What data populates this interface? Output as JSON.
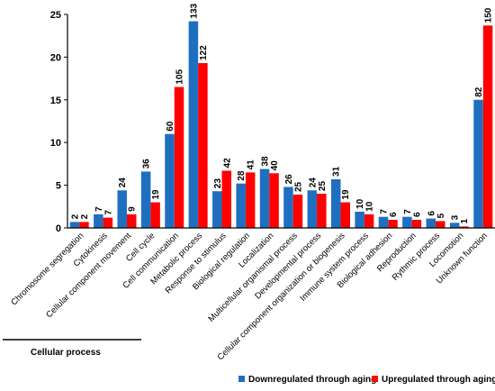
{
  "chart_data": {
    "type": "bar",
    "categories": [
      "Chromosome segregation",
      "Cytokinesis",
      "Cellular component movement",
      "Cell cycle",
      "Cell communication",
      "Metabolic process",
      "Response to stimulus",
      "Biological regulation",
      "Localization",
      "Multicellular organismal process",
      "Developmental process",
      "Cellular component organization or biogenesis",
      "Immune system process",
      "Biological adhesion",
      "Reproduction",
      "Rythmic process",
      "Locomotion",
      "Unknown function"
    ],
    "series": [
      {
        "name": "Downregulated through aging",
        "color": "#1f6fc1",
        "values": [
          0.7,
          1.6,
          4.4,
          6.6,
          11.0,
          24.2,
          4.3,
          5.2,
          6.9,
          4.8,
          4.4,
          5.7,
          1.9,
          1.3,
          1.3,
          1.1,
          0.6,
          15.0
        ],
        "labels": [
          "2",
          "7",
          "24",
          "36",
          "60",
          "133",
          "23",
          "28",
          "38",
          "26",
          "24",
          "31",
          "10",
          "7",
          "7",
          "6",
          "3",
          "82"
        ]
      },
      {
        "name": "Upregulated through aging",
        "color": "#ff0000",
        "values": [
          0.7,
          1.2,
          1.6,
          3.0,
          16.5,
          19.3,
          6.7,
          6.5,
          6.4,
          3.9,
          4.0,
          3.0,
          1.6,
          0.95,
          0.95,
          0.8,
          0.17,
          23.7
        ],
        "labels": [
          "2",
          "7",
          "9",
          "19",
          "105",
          "122",
          "42",
          "41",
          "40",
          "25",
          "25",
          "19",
          "10",
          "6",
          "6",
          "5",
          "1",
          "150"
        ]
      }
    ],
    "yticks": [
      "0",
      "5",
      "10",
      "15",
      "20",
      "25"
    ],
    "ylim": [
      0,
      25
    ],
    "grid": false,
    "legend_position": "bottom-right",
    "annotation": "Cellular process"
  }
}
